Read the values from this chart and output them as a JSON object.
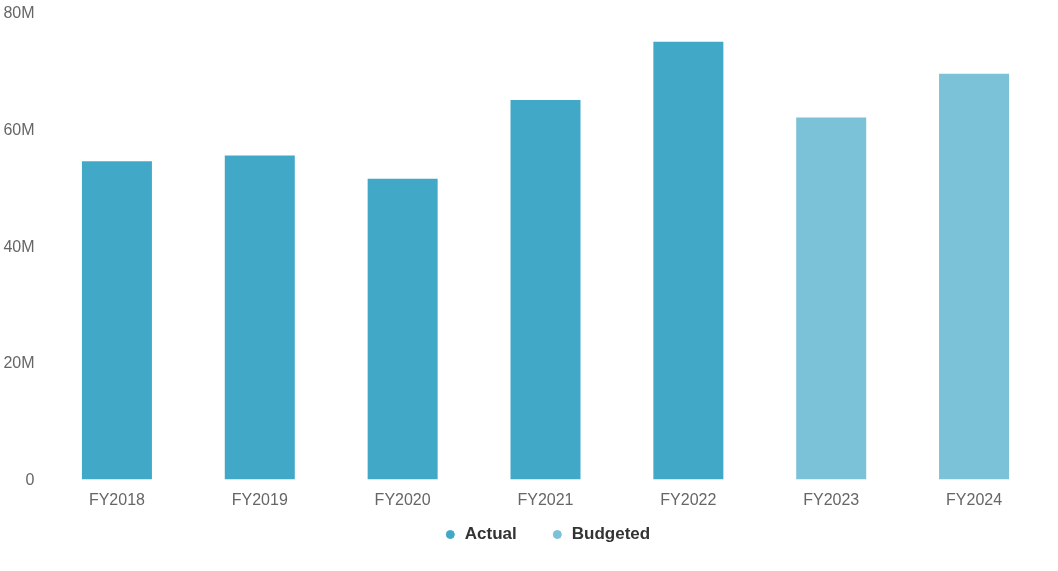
{
  "chart_data": {
    "type": "bar",
    "categories": [
      "FY2018",
      "FY2019",
      "FY2020",
      "FY2021",
      "FY2022",
      "FY2023",
      "FY2024"
    ],
    "series": [
      {
        "name": "Actual",
        "color": "#42a8c8",
        "values": [
          54500000,
          55500000,
          51500000,
          65000000,
          75000000,
          null,
          null
        ]
      },
      {
        "name": "Budgeted",
        "color": "#7bc1d7",
        "values": [
          null,
          null,
          null,
          null,
          null,
          62000000,
          69500000
        ]
      }
    ],
    "ylim": [
      0,
      80000000
    ],
    "yticks": [
      {
        "value": 0,
        "label": "0"
      },
      {
        "value": 20000000,
        "label": "20M"
      },
      {
        "value": 40000000,
        "label": "40M"
      },
      {
        "value": 60000000,
        "label": "60M"
      },
      {
        "value": 80000000,
        "label": "80M"
      }
    ],
    "grid": false,
    "legend": "bottom",
    "marker": "circle"
  }
}
